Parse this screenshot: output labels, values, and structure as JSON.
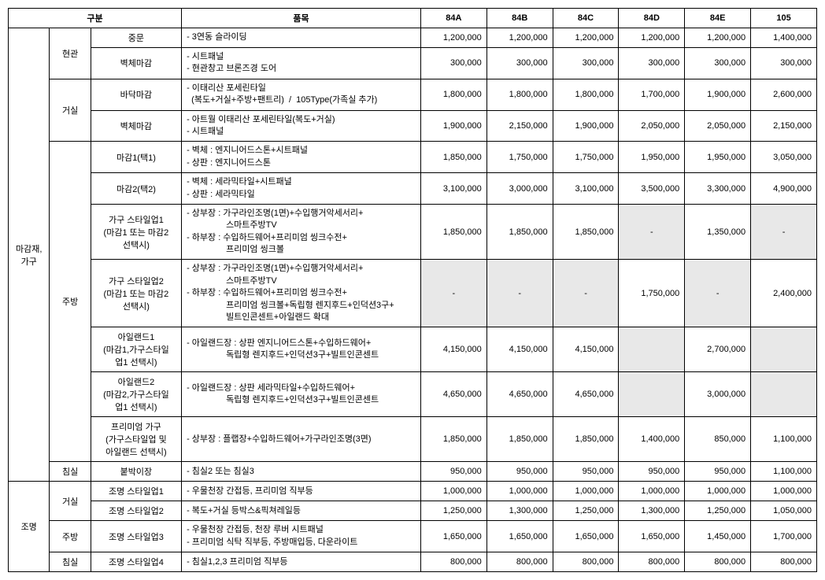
{
  "headers": {
    "category": "구분",
    "item": "품목",
    "c84a": "84A",
    "c84b": "84B",
    "c84c": "84C",
    "c84d": "84D",
    "c84e": "84E",
    "c105": "105"
  },
  "group1": {
    "cat1": "마감재,\n가구",
    "g_hyungwan": {
      "label": "현관",
      "r1": {
        "cat3": "중문",
        "desc": "- 3연동 슬라이딩",
        "p": [
          "1,200,000",
          "1,200,000",
          "1,200,000",
          "1,200,000",
          "1,200,000",
          "1,400,000"
        ]
      },
      "r2": {
        "cat3": "벽체마감",
        "d1": "- 시트패널",
        "d2": "- 현관창고 브론즈경 도어",
        "p": [
          "300,000",
          "300,000",
          "300,000",
          "300,000",
          "300,000",
          "300,000"
        ]
      }
    },
    "g_geosil": {
      "label": "거실",
      "r1": {
        "cat3": "바닥마감",
        "d1": "- 이태리산 포세린타일",
        "d2": "  (복도+거실+주방+팬트리)  /  105Type(가족실 추가)",
        "p": [
          "1,800,000",
          "1,800,000",
          "1,800,000",
          "1,700,000",
          "1,900,000",
          "2,600,000"
        ]
      },
      "r2": {
        "cat3": "벽체마감",
        "d1": "- 아트월 이태리산 포세린타일(복도+거실)",
        "d2": "- 시트패널",
        "p": [
          "1,900,000",
          "2,150,000",
          "1,900,000",
          "2,050,000",
          "2,050,000",
          "2,150,000"
        ]
      }
    },
    "g_jubang": {
      "label": "주방",
      "r1": {
        "cat3": "마감1(택1)",
        "d1": "- 벽체 : 엔지니어드스톤+시트패널",
        "d2": "- 상판 : 엔지니어드스톤",
        "p": [
          "1,850,000",
          "1,750,000",
          "1,750,000",
          "1,950,000",
          "1,950,000",
          "3,050,000"
        ]
      },
      "r2": {
        "cat3": "마감2(택2)",
        "d1": "- 벽체 : 세라믹타일+시트패널",
        "d2": "- 상판 : 세라믹타일",
        "p": [
          "3,100,000",
          "3,000,000",
          "3,100,000",
          "3,500,000",
          "3,300,000",
          "4,900,000"
        ]
      },
      "r3": {
        "cat3a": "가구 스타일업1",
        "cat3b": "(마감1 또는 마감2",
        "cat3c": "선택시)",
        "d1": "- 상부장 : 가구라인조명(1면)+수입행거악세서리+",
        "d2": "스마트주방TV",
        "d3": "- 하부장 : 수입하드웨어+프리미엄 씽크수전+",
        "d4": "프리미엄 씽크볼",
        "p": [
          "1,850,000",
          "1,850,000",
          "1,850,000",
          "-",
          "1,350,000",
          "-"
        ]
      },
      "r4": {
        "cat3a": "가구 스타일업2",
        "cat3b": "(마감1 또는 마감2",
        "cat3c": "선택시)",
        "d1": "- 상부장 : 가구라인조명(1면)+수입행거악세서리+",
        "d2": "스마트주방TV",
        "d3": "- 하부장 : 수입하드웨어+프리미엄 씽크수전+",
        "d4": "프리미엄 씽크볼+독립형 렌지후드+인덕션3구+",
        "d5": "빌트인콘센트+아일랜드 확대",
        "p": [
          "-",
          "-",
          "-",
          "1,750,000",
          "-",
          "2,400,000"
        ]
      },
      "r5": {
        "cat3a": "아일랜드1",
        "cat3b": "(마감1,가구스타일",
        "cat3c": "업1 선택시)",
        "d1": "- 아일랜드장 : 상판 엔지니어드스톤+수입하드웨어+",
        "d2": "독립형 렌지후드+인덕션3구+빌트인콘센트",
        "p": [
          "4,150,000",
          "4,150,000",
          "4,150,000",
          "",
          "2,700,000",
          ""
        ]
      },
      "r6": {
        "cat3a": "아일랜드2",
        "cat3b": "(마감2,가구스타일",
        "cat3c": "업1 선택시)",
        "d1": "- 아일랜드장 : 상판 세라믹타일+수입하드웨어+",
        "d2": "독립형 렌지후드+인덕션3구+빌트인콘센트",
        "p": [
          "4,650,000",
          "4,650,000",
          "4,650,000",
          "",
          "3,000,000",
          ""
        ]
      },
      "r7": {
        "cat3a": "프리미엄 가구",
        "cat3b": "(가구스타일업 및",
        "cat3c": "아일랜드 선택시)",
        "d1": "- 상부장 : 플랩장+수입하드웨어+가구라인조명(3면)",
        "p": [
          "1,850,000",
          "1,850,000",
          "1,850,000",
          "1,400,000",
          "850,000",
          "1,100,000"
        ]
      }
    },
    "g_chimsil": {
      "label": "침실",
      "r1": {
        "cat3": "붙박이장",
        "d1": "- 침실2 또는 침실3",
        "p": [
          "950,000",
          "950,000",
          "950,000",
          "950,000",
          "950,000",
          "1,100,000"
        ]
      }
    }
  },
  "group2": {
    "cat1": "조명",
    "g_geosil": {
      "label": "거실",
      "r1": {
        "cat3": "조명 스타일업1",
        "d1": "- 우물천장 간접등, 프리미엄 직부등",
        "p": [
          "1,000,000",
          "1,000,000",
          "1,000,000",
          "1,000,000",
          "1,000,000",
          "1,000,000"
        ]
      },
      "r2": {
        "cat3": "조명 스타일업2",
        "d1": "- 복도+거실 등박스&픽쳐레일등",
        "p": [
          "1,250,000",
          "1,300,000",
          "1,250,000",
          "1,300,000",
          "1,250,000",
          "1,050,000"
        ]
      }
    },
    "g_jubang": {
      "label": "주방",
      "r1": {
        "cat3": "조명 스타일업3",
        "d1": "- 우물천장 간접등, 천장 루버 시트패널",
        "d2": "- 프리미엄 식탁 직부등, 주방매입등, 다운라이트",
        "p": [
          "1,650,000",
          "1,650,000",
          "1,650,000",
          "1,650,000",
          "1,450,000",
          "1,700,000"
        ]
      }
    },
    "g_chimsil": {
      "label": "침실",
      "r1": {
        "cat3": "조명 스타일업4",
        "d1": "- 침실1,2,3 프리미엄 직부등",
        "p": [
          "800,000",
          "800,000",
          "800,000",
          "800,000",
          "800,000",
          "800,000"
        ]
      }
    }
  }
}
